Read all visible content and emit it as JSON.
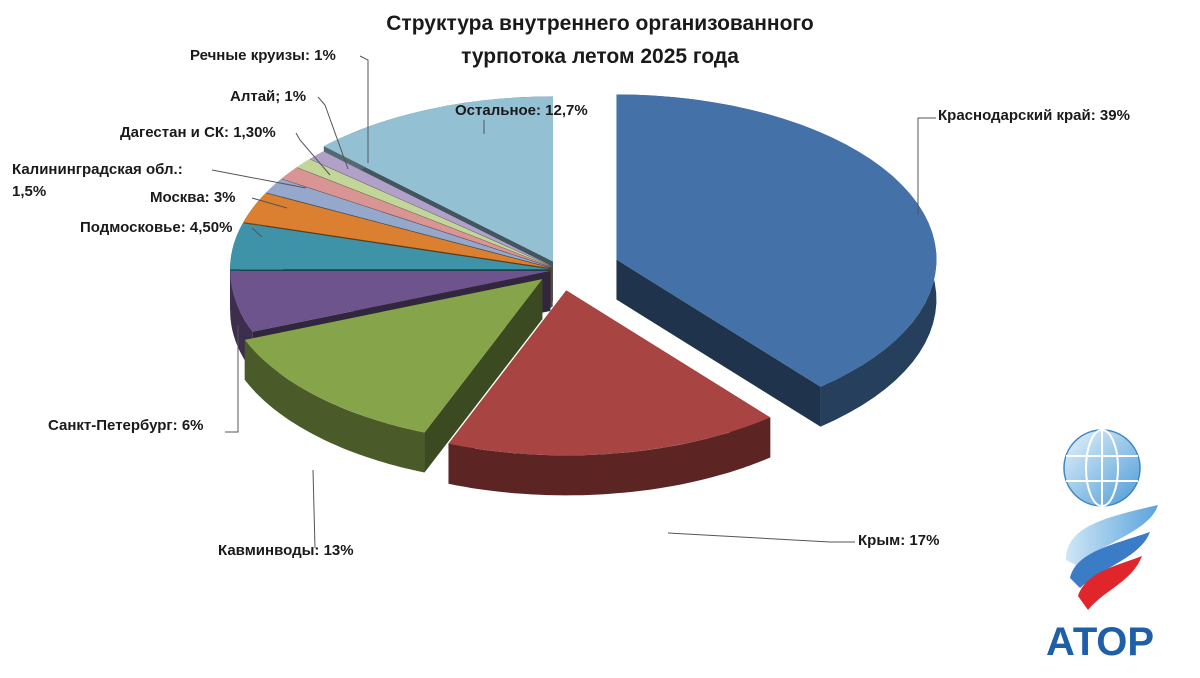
{
  "chart_data": {
    "type": "pie",
    "title_lines": [
      "Структура внутреннего организованного",
      "турпотока летом 2025 года"
    ],
    "slices": [
      {
        "label": "Краснодарский край: 39%",
        "value": 39,
        "color": "#4472a8"
      },
      {
        "label": "Крым: 17%",
        "value": 17,
        "color": "#a84442"
      },
      {
        "label": "Кавминводы: 13%",
        "value": 13,
        "color": "#86a44a"
      },
      {
        "label": "Санкт-Петербург: 6%",
        "value": 6,
        "color": "#6e548d"
      },
      {
        "label": "Подмосковье: 4,50%",
        "value": 4.5,
        "color": "#3f93a8"
      },
      {
        "label": "Москва: 3%",
        "value": 3,
        "color": "#db8030"
      },
      {
        "label": "Калининградская обл.: 1,5%",
        "lines": [
          "Калининградская обл.:",
          "1,5%"
        ],
        "value": 1.5,
        "color": "#95a8cc"
      },
      {
        "label": "Дагестан и СК: 1,30%",
        "value": 1.3,
        "color": "#d99594"
      },
      {
        "label": "Алтай; 1%",
        "value": 1,
        "color": "#c2d69a"
      },
      {
        "label": "Речные круизы: 1%",
        "value": 1,
        "color": "#b1a0c7"
      },
      {
        "label": "Остальное: 12,7%",
        "value": 12.7,
        "color": "#93c0d2"
      }
    ]
  },
  "logo": {
    "text": "АТОР",
    "color": "#1f5fa8"
  }
}
